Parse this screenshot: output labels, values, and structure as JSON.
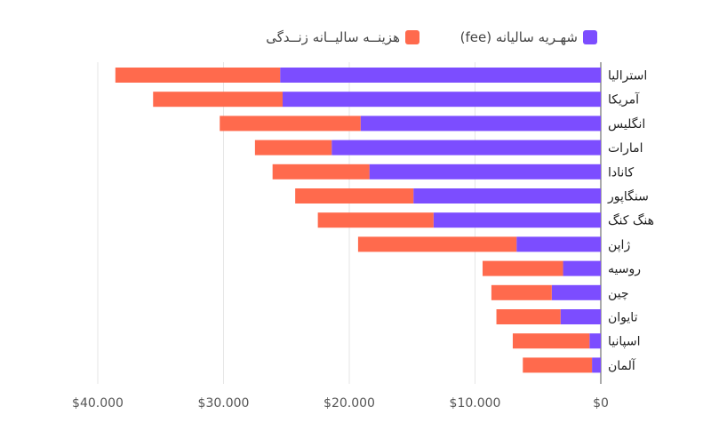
{
  "chart_data": {
    "type": "bar",
    "orientation": "horizontal",
    "stacked": true,
    "categories": [
      "استرالیا",
      "آمریکا",
      "انگلیس",
      "امارات",
      "کانادا",
      "سنگاپور",
      "هنگ کنگ",
      "ژاپن",
      "روسیه",
      "چین",
      "تایوان",
      "اسپانیا",
      "آلمان"
    ],
    "series": [
      {
        "name": "شهـریه سالیانه (fee)",
        "color": "#7c4dff",
        "values": [
          25500,
          25300,
          19100,
          21400,
          18400,
          14900,
          13300,
          6700,
          3000,
          3900,
          3200,
          900,
          700
        ]
      },
      {
        "name": "هزینــه سالیــانه زنــدگی",
        "color": "#ff6a4d",
        "values": [
          13100,
          10300,
          11200,
          6100,
          7700,
          9400,
          9200,
          12600,
          6400,
          4800,
          5100,
          6100,
          5500
        ]
      }
    ],
    "x_ticks": [
      "$40.000",
      "$30.000",
      "$20.000",
      "$10.000",
      "$0"
    ],
    "xlim": [
      0,
      40000
    ],
    "x_reversed": true,
    "grid": true,
    "legend": "top-right"
  }
}
